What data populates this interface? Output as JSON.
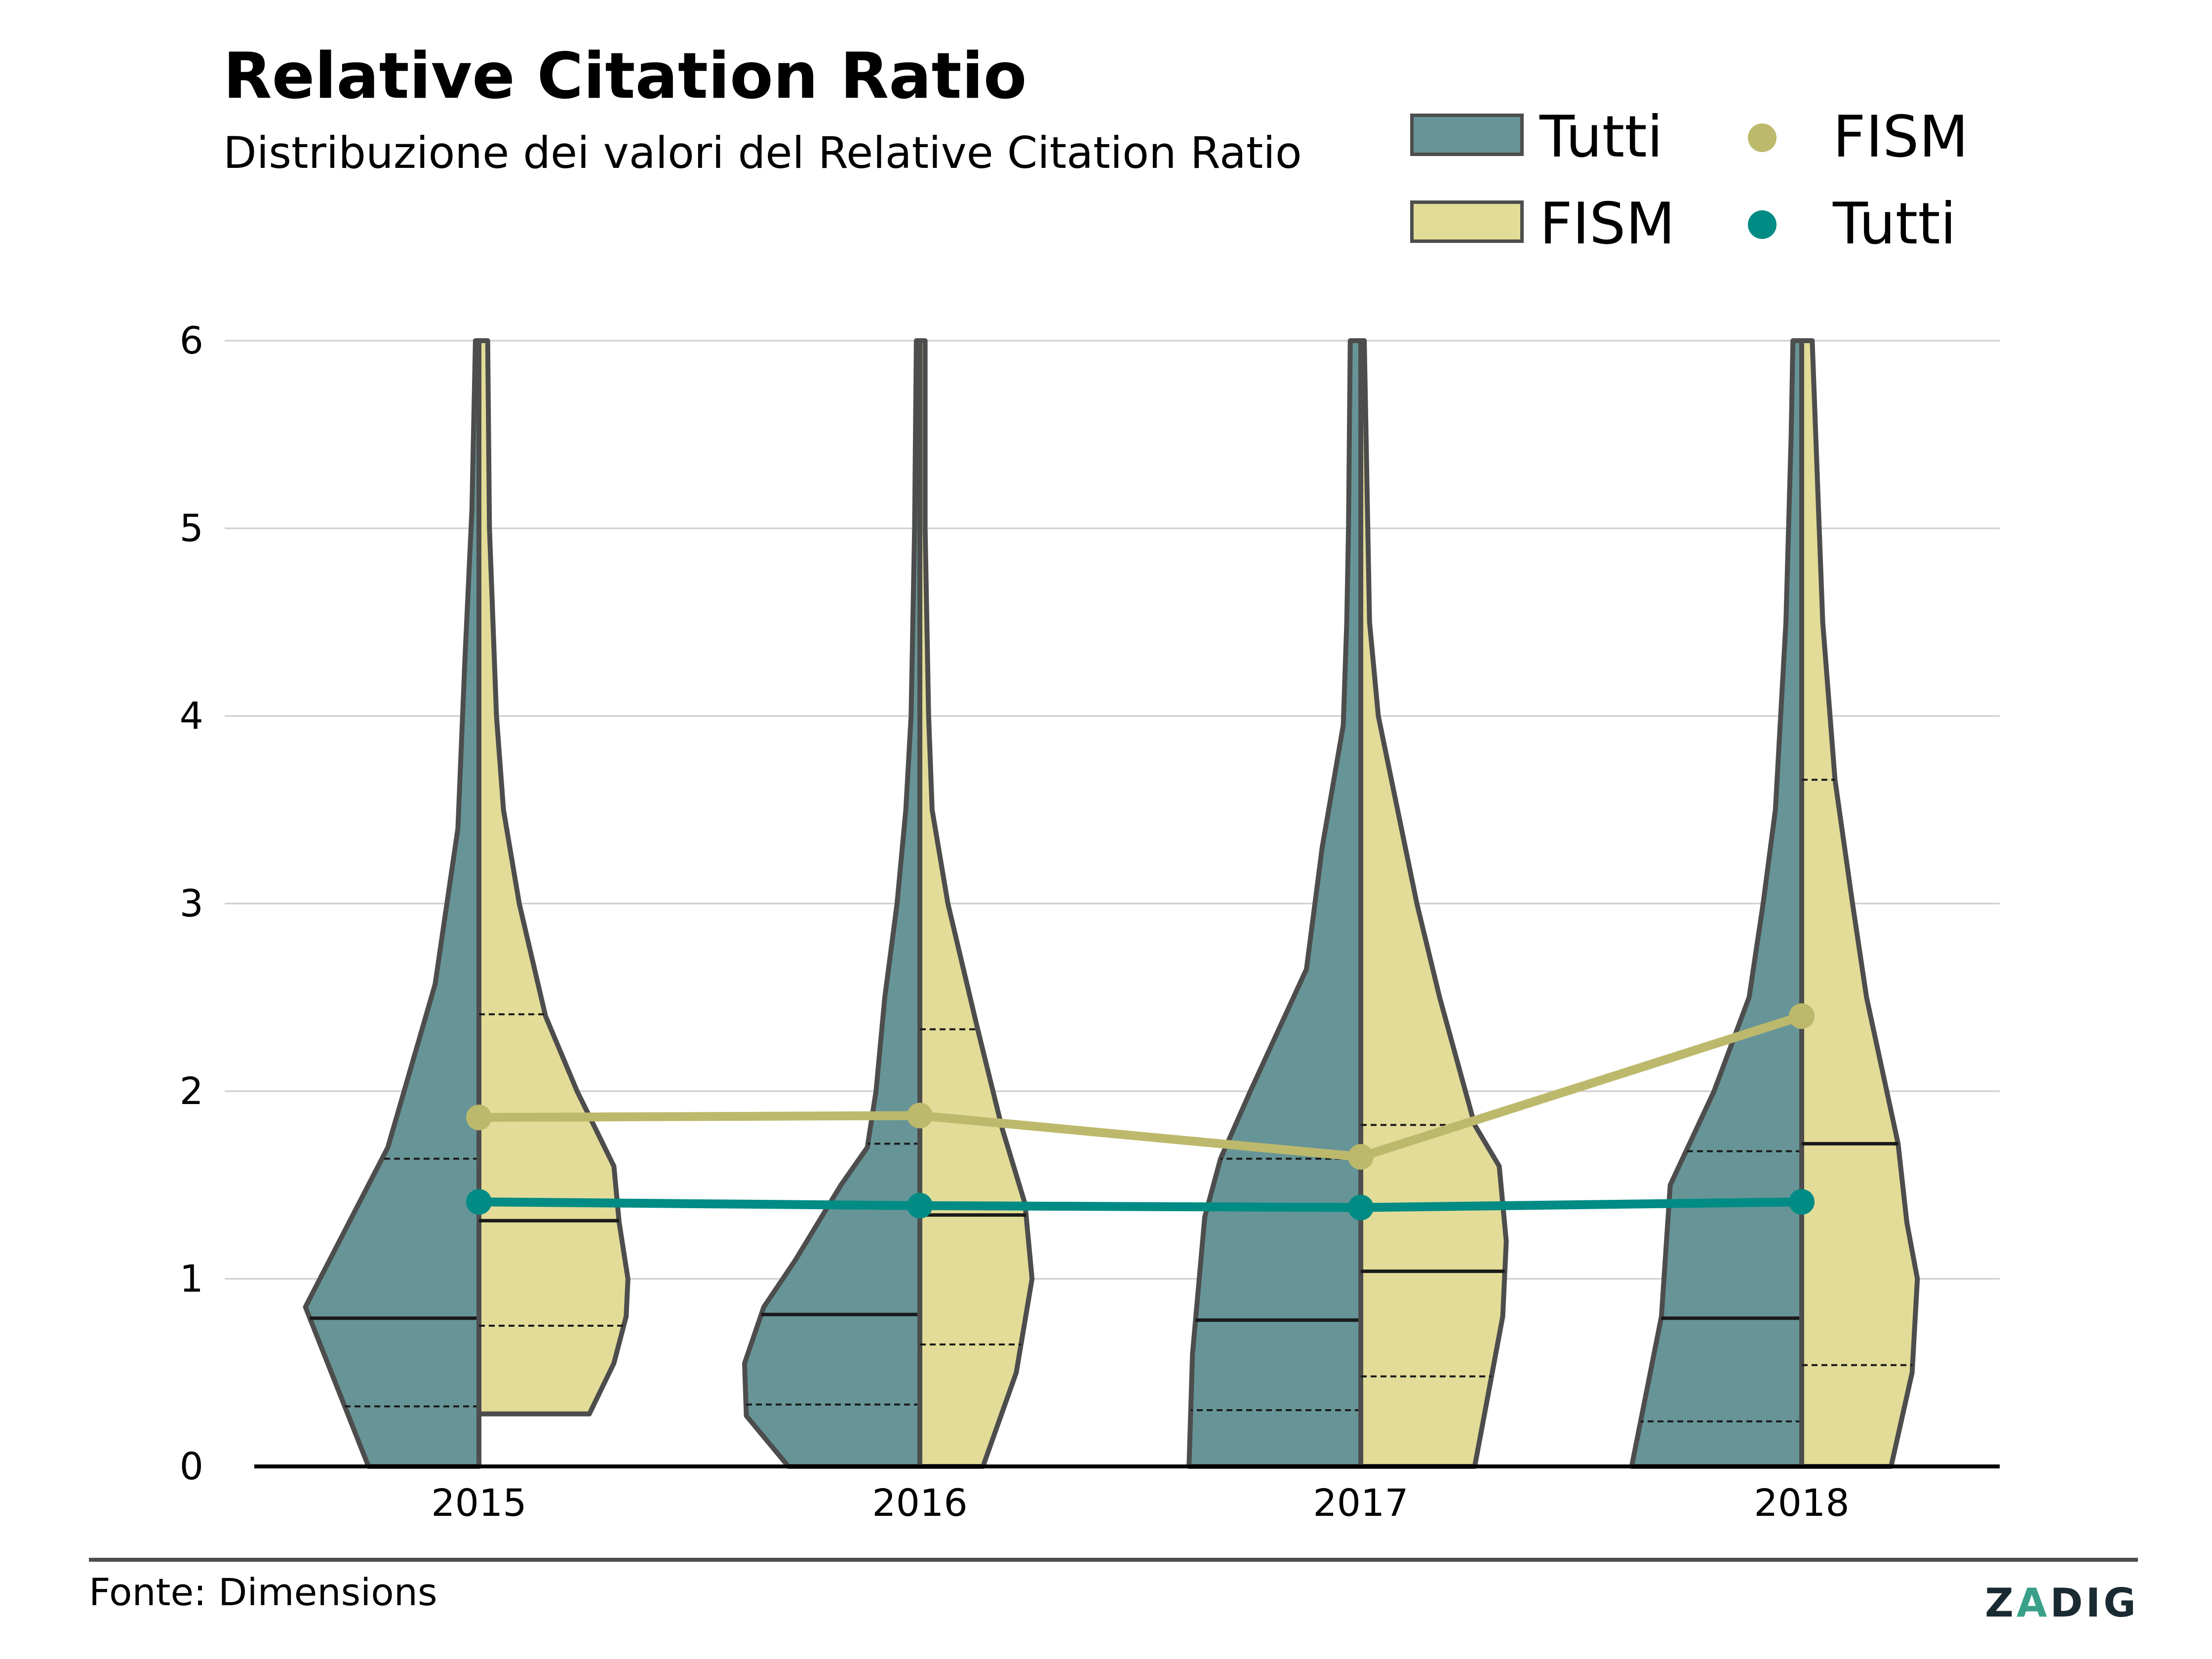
{
  "title": "Relative Citation Ratio",
  "subtitle": "Distribuzione dei valori del Relative Citation Ratio",
  "source": "Fonte: Dimensions",
  "logo": {
    "pre": "Z",
    "mid": "A",
    "post": "DIG"
  },
  "legend": {
    "tutti_area": "Tutti",
    "fism_area": "FISM",
    "fism_point": "FISM",
    "tutti_point": "Tutti"
  },
  "colors": {
    "tutti": "#679597",
    "fism": "#e2dc98",
    "fism_line": "#bdb96c",
    "tutti_line": "#008b84",
    "outline": "#4d4d4d"
  },
  "chart_data": {
    "type": "violin",
    "categories": [
      "2015",
      "2016",
      "2017",
      "2018"
    ],
    "ylim": [
      0,
      6
    ],
    "yticks": [
      "0",
      "1",
      "2",
      "3",
      "4",
      "5",
      "6"
    ],
    "grid": true,
    "legend_position": "top-right",
    "violins": [
      {
        "category": "2015",
        "tutti": {
          "q1": 0.32,
          "median": 0.79,
          "q3": 1.64,
          "profile": [
            [
              0,
              0.63
            ],
            [
              0.85,
              0.99
            ],
            [
              1.7,
              0.52
            ],
            [
              2.57,
              0.25
            ],
            [
              3.4,
              0.12
            ],
            [
              4.3,
              0.08
            ],
            [
              5.1,
              0.04
            ],
            [
              6.0,
              0.02
            ]
          ]
        },
        "fism": {
          "q1": 0.75,
          "median": 1.31,
          "q3": 2.41,
          "profile": [
            [
              0.28,
              0.63
            ],
            [
              0.55,
              0.77
            ],
            [
              0.8,
              0.84
            ],
            [
              1.0,
              0.85
            ],
            [
              1.3,
              0.8
            ],
            [
              1.6,
              0.77
            ],
            [
              2.0,
              0.56
            ],
            [
              2.4,
              0.38
            ],
            [
              3.0,
              0.23
            ],
            [
              3.5,
              0.14
            ],
            [
              4.0,
              0.1
            ],
            [
              4.5,
              0.08
            ],
            [
              5.0,
              0.06
            ],
            [
              6.0,
              0.05
            ]
          ]
        }
      },
      {
        "category": "2016",
        "tutti": {
          "q1": 0.33,
          "median": 0.81,
          "q3": 1.72,
          "profile": [
            [
              0,
              0.75
            ],
            [
              0.27,
              0.99
            ],
            [
              0.55,
              1.0
            ],
            [
              0.85,
              0.89
            ],
            [
              1.1,
              0.71
            ],
            [
              1.5,
              0.45
            ],
            [
              1.7,
              0.3
            ],
            [
              2.0,
              0.25
            ],
            [
              2.5,
              0.2
            ],
            [
              3.0,
              0.13
            ],
            [
              3.5,
              0.08
            ],
            [
              4.0,
              0.05
            ],
            [
              5.0,
              0.03
            ],
            [
              6.0,
              0.02
            ]
          ]
        },
        "fism": {
          "q1": 0.65,
          "median": 1.34,
          "q3": 2.33,
          "profile": [
            [
              0,
              0.36
            ],
            [
              0.5,
              0.55
            ],
            [
              1.0,
              0.64
            ],
            [
              1.4,
              0.6
            ],
            [
              1.8,
              0.47
            ],
            [
              2.33,
              0.33
            ],
            [
              3.0,
              0.16
            ],
            [
              3.5,
              0.07
            ],
            [
              4.0,
              0.05
            ],
            [
              5.0,
              0.03
            ],
            [
              6.0,
              0.03
            ]
          ]
        }
      },
      {
        "category": "2017",
        "tutti": {
          "q1": 0.3,
          "median": 0.78,
          "q3": 1.64,
          "profile": [
            [
              0,
              0.98
            ],
            [
              0.6,
              0.96
            ],
            [
              1.33,
              0.89
            ],
            [
              1.64,
              0.8
            ],
            [
              2.0,
              0.63
            ],
            [
              2.65,
              0.31
            ],
            [
              3.3,
              0.22
            ],
            [
              3.95,
              0.1
            ],
            [
              4.5,
              0.08
            ],
            [
              5.0,
              0.07
            ],
            [
              6.0,
              0.06
            ]
          ]
        },
        "fism": {
          "q1": 0.48,
          "median": 1.04,
          "q3": 1.82,
          "profile": [
            [
              0,
              0.65
            ],
            [
              0.8,
              0.81
            ],
            [
              1.2,
              0.83
            ],
            [
              1.6,
              0.79
            ],
            [
              1.82,
              0.65
            ],
            [
              2.5,
              0.45
            ],
            [
              3.0,
              0.32
            ],
            [
              3.5,
              0.21
            ],
            [
              4.0,
              0.1
            ],
            [
              4.5,
              0.05
            ],
            [
              5.5,
              0.03
            ],
            [
              6.0,
              0.02
            ]
          ]
        }
      },
      {
        "category": "2018",
        "tutti": {
          "q1": 0.24,
          "median": 0.79,
          "q3": 1.68,
          "profile": [
            [
              0,
              0.97
            ],
            [
              0.8,
              0.8
            ],
            [
              1.5,
              0.75
            ],
            [
              2.0,
              0.5
            ],
            [
              2.5,
              0.3
            ],
            [
              3.0,
              0.22
            ],
            [
              3.5,
              0.15
            ],
            [
              4.5,
              0.09
            ],
            [
              5.5,
              0.06
            ],
            [
              6.0,
              0.05
            ]
          ]
        },
        "fism": {
          "q1": 0.54,
          "median": 1.72,
          "q3": 3.66,
          "profile": [
            [
              0,
              0.51
            ],
            [
              0.5,
              0.63
            ],
            [
              1.0,
              0.66
            ],
            [
              1.3,
              0.6
            ],
            [
              1.72,
              0.55
            ],
            [
              2.5,
              0.37
            ],
            [
              3.0,
              0.29
            ],
            [
              3.66,
              0.19
            ],
            [
              4.5,
              0.12
            ],
            [
              5.5,
              0.08
            ],
            [
              6.0,
              0.06
            ]
          ]
        }
      }
    ],
    "series": [
      {
        "name": "FISM",
        "values": [
          1.86,
          1.87,
          1.65,
          2.4
        ]
      },
      {
        "name": "Tutti",
        "values": [
          1.41,
          1.39,
          1.38,
          1.41
        ]
      }
    ]
  }
}
